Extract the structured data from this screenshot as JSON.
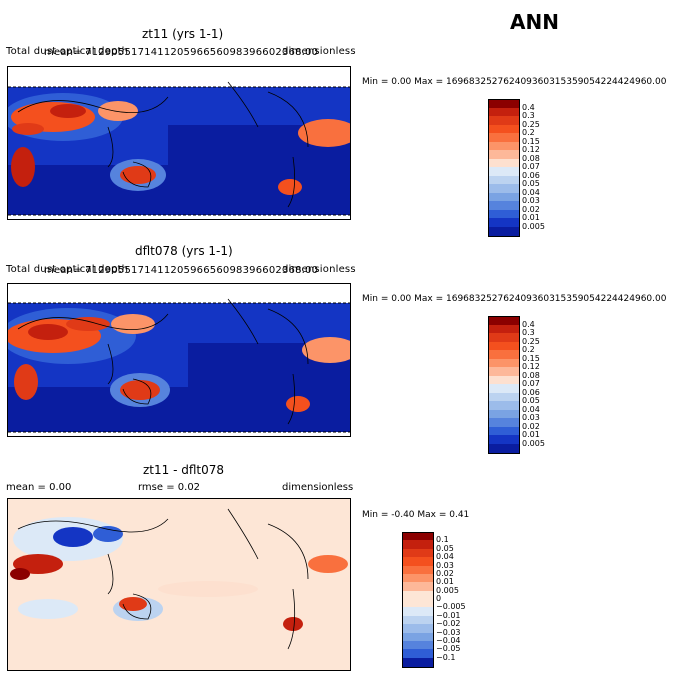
{
  "season": "ANN",
  "panels": [
    {
      "title": "zt11 (yrs 1-1)",
      "left_label": "Total dust optical depth",
      "mean_label": "mean= 712905517141120596656098396602368.00",
      "units": "dimensionless",
      "minmax": "Min =    0.00 Max = 169683252762409360315359054224424960.00"
    },
    {
      "title": "dflt078 (yrs 1-1)",
      "left_label": "Total dust optical depth",
      "mean_label": "mean= 712905517141120596656098396602368.00",
      "units": "dimensionless",
      "minmax": "Min =    0.00 Max = 169683252762409360315359054224424960.00"
    },
    {
      "title": "zt11 - dflt078",
      "mean_text": "mean =    0.00",
      "rmse_text": "rmse =    0.02",
      "units": "dimensionless",
      "minmax": "Min =   -0.40 Max =    0.41"
    }
  ],
  "chart_data": [
    {
      "type": "heatmap",
      "title": "zt11 (yrs 1-1)",
      "variable": "Total dust optical depth",
      "units": "dimensionless",
      "min": 0.0,
      "max": 1.6968325276240936e+35,
      "colorbar_levels": [
        "0.4",
        "0.3",
        "0.25",
        "0.2",
        "0.15",
        "0.12",
        "0.08",
        "0.07",
        "0.06",
        "0.05",
        "0.04",
        "0.03",
        "0.02",
        "0.01",
        "0.005"
      ],
      "colorbar_colors": [
        "#8b0000",
        "#c4200e",
        "#e03a17",
        "#f4501e",
        "#f9703e",
        "#fc9468",
        "#fdb899",
        "#fde0cf",
        "#dce9f7",
        "#bcd3f0",
        "#9cbcea",
        "#7aa3e3",
        "#5683dd",
        "#2f5ed6",
        "#1435c4",
        "#0a1da0"
      ]
    },
    {
      "type": "heatmap",
      "title": "dflt078 (yrs 1-1)",
      "variable": "Total dust optical depth",
      "units": "dimensionless",
      "min": 0.0,
      "max": 1.6968325276240936e+35,
      "colorbar_levels": [
        "0.4",
        "0.3",
        "0.25",
        "0.2",
        "0.15",
        "0.12",
        "0.08",
        "0.07",
        "0.06",
        "0.05",
        "0.04",
        "0.03",
        "0.02",
        "0.01",
        "0.005"
      ],
      "colorbar_colors": [
        "#8b0000",
        "#c4200e",
        "#e03a17",
        "#f4501e",
        "#f9703e",
        "#fc9468",
        "#fdb899",
        "#fde0cf",
        "#dce9f7",
        "#bcd3f0",
        "#9cbcea",
        "#7aa3e3",
        "#5683dd",
        "#2f5ed6",
        "#1435c4",
        "#0a1da0"
      ]
    },
    {
      "type": "heatmap",
      "title": "zt11 - dflt078",
      "units": "dimensionless",
      "mean": 0.0,
      "rmse": 0.02,
      "min": -0.4,
      "max": 0.41,
      "colorbar_levels": [
        "0.1",
        "0.05",
        "0.04",
        "0.03",
        "0.02",
        "0.01",
        "0.005",
        "0",
        "−0.005",
        "−0.01",
        "−0.02",
        "−0.03",
        "−0.04",
        "−0.05",
        "−0.1"
      ],
      "colorbar_colors": [
        "#8b0000",
        "#c4200e",
        "#e03a17",
        "#f4501e",
        "#f9703e",
        "#fc9468",
        "#fdb899",
        "#fde6d6",
        "#fde6d6",
        "#dce9f7",
        "#bcd3f0",
        "#9cbcea",
        "#7aa3e3",
        "#5683dd",
        "#2f5ed6",
        "#0a1da0"
      ]
    }
  ]
}
